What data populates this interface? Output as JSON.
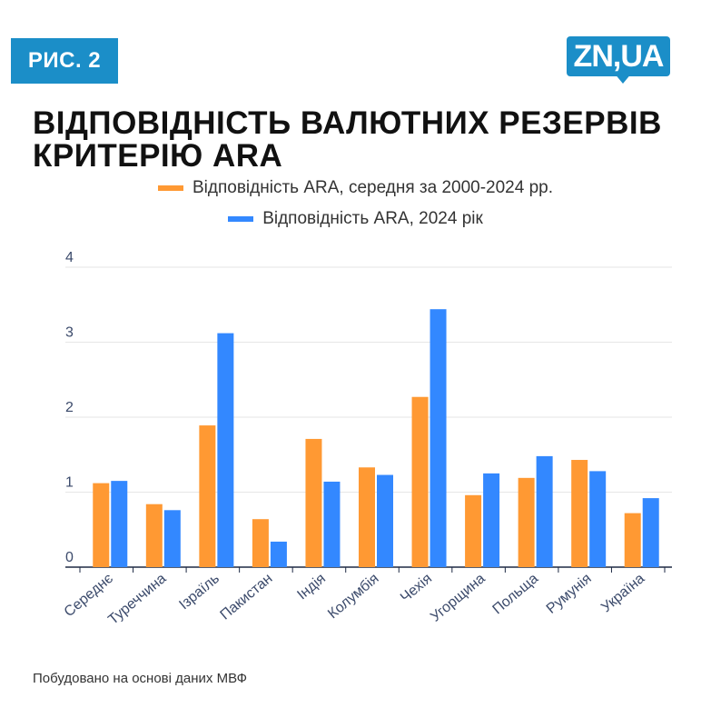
{
  "badge": "РИС. 2",
  "logo": "ZN,UA",
  "title": "ВІДПОВІДНІСТЬ ВАЛЮТНИХ РЕЗЕРВІВ КРИТЕРІЮ ARA",
  "source": "Побудовано на основі даних МВФ",
  "colors": {
    "series1": "#ff9933",
    "series2": "#3388ff",
    "brand": "#1b8ec8"
  },
  "chart_data": {
    "type": "bar",
    "categories": [
      "Середнє",
      "Туреччина",
      "Ізраїль",
      "Пакистан",
      "Індія",
      "Колумбія",
      "Чехія",
      "Угорщина",
      "Польща",
      "Румунія",
      "Україна"
    ],
    "series": [
      {
        "name": "Відповідність ARA, середня за 2000-2024 рр.",
        "values": [
          1.12,
          0.84,
          1.89,
          0.64,
          1.71,
          1.33,
          2.27,
          0.96,
          1.19,
          1.43,
          0.72
        ]
      },
      {
        "name": "Відповідність ARA, 2024 рік",
        "values": [
          1.15,
          0.76,
          3.12,
          0.34,
          1.14,
          1.23,
          3.44,
          1.25,
          1.48,
          1.28,
          0.92
        ]
      }
    ],
    "yticks": [
      0,
      1,
      2,
      3,
      4
    ],
    "ylim": [
      0,
      4
    ],
    "grid": true,
    "legend": "top-center"
  }
}
